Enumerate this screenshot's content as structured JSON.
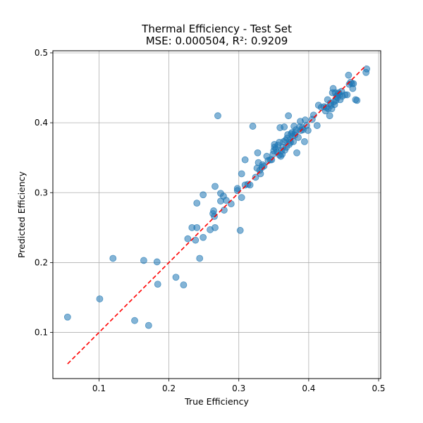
{
  "chart_data": {
    "type": "scatter",
    "title": "Thermal Efficiency - Test Set",
    "subtitle": "MSE: 0.000504, R²: 0.9209",
    "xlabel": "True Efficiency",
    "ylabel": "Predicted Efficiency",
    "xlim": [
      0.034,
      0.503
    ],
    "ylim": [
      0.034,
      0.503
    ],
    "xticks": [
      0.1,
      0.2,
      0.3,
      0.4,
      0.5
    ],
    "yticks": [
      0.1,
      0.2,
      0.3,
      0.4,
      0.5
    ],
    "xtick_labels": [
      "0.1",
      "0.2",
      "0.3",
      "0.4",
      "0.5"
    ],
    "ytick_labels": [
      "0.1",
      "0.2",
      "0.3",
      "0.4",
      "0.5"
    ],
    "grid": true,
    "point_color": "#1f77b4",
    "reference_line": {
      "color": "#ff0000",
      "style": "dashed",
      "x": [
        0.055,
        0.482
      ],
      "y": [
        0.055,
        0.482
      ]
    },
    "points": [
      [
        0.055,
        0.122
      ],
      [
        0.101,
        0.148
      ],
      [
        0.12,
        0.206
      ],
      [
        0.151,
        0.117
      ],
      [
        0.164,
        0.203
      ],
      [
        0.171,
        0.11
      ],
      [
        0.183,
        0.201
      ],
      [
        0.184,
        0.169
      ],
      [
        0.21,
        0.179
      ],
      [
        0.221,
        0.168
      ],
      [
        0.227,
        0.234
      ],
      [
        0.233,
        0.25
      ],
      [
        0.238,
        0.232
      ],
      [
        0.24,
        0.285
      ],
      [
        0.24,
        0.25
      ],
      [
        0.244,
        0.206
      ],
      [
        0.249,
        0.236
      ],
      [
        0.249,
        0.297
      ],
      [
        0.259,
        0.247
      ],
      [
        0.263,
        0.27
      ],
      [
        0.264,
        0.274
      ],
      [
        0.265,
        0.266
      ],
      [
        0.266,
        0.309
      ],
      [
        0.266,
        0.25
      ],
      [
        0.27,
        0.41
      ],
      [
        0.274,
        0.299
      ],
      [
        0.274,
        0.288
      ],
      [
        0.278,
        0.295
      ],
      [
        0.279,
        0.275
      ],
      [
        0.282,
        0.289
      ],
      [
        0.289,
        0.284
      ],
      [
        0.298,
        0.306
      ],
      [
        0.298,
        0.303
      ],
      [
        0.302,
        0.246
      ],
      [
        0.304,
        0.327
      ],
      [
        0.304,
        0.293
      ],
      [
        0.309,
        0.311
      ],
      [
        0.309,
        0.347
      ],
      [
        0.313,
        0.312
      ],
      [
        0.316,
        0.311
      ],
      [
        0.32,
        0.395
      ],
      [
        0.324,
        0.322
      ],
      [
        0.326,
        0.335
      ],
      [
        0.327,
        0.357
      ],
      [
        0.328,
        0.343
      ],
      [
        0.33,
        0.332
      ],
      [
        0.331,
        0.327
      ],
      [
        0.333,
        0.336
      ],
      [
        0.334,
        0.34
      ],
      [
        0.336,
        0.338
      ],
      [
        0.34,
        0.352
      ],
      [
        0.342,
        0.346
      ],
      [
        0.345,
        0.347
      ],
      [
        0.347,
        0.347
      ],
      [
        0.349,
        0.355
      ],
      [
        0.35,
        0.36
      ],
      [
        0.351,
        0.365
      ],
      [
        0.351,
        0.369
      ],
      [
        0.353,
        0.363
      ],
      [
        0.355,
        0.358
      ],
      [
        0.356,
        0.368
      ],
      [
        0.358,
        0.372
      ],
      [
        0.358,
        0.354
      ],
      [
        0.359,
        0.393
      ],
      [
        0.36,
        0.352
      ],
      [
        0.361,
        0.36
      ],
      [
        0.362,
        0.355
      ],
      [
        0.363,
        0.365
      ],
      [
        0.364,
        0.373
      ],
      [
        0.365,
        0.394
      ],
      [
        0.366,
        0.361
      ],
      [
        0.367,
        0.375
      ],
      [
        0.368,
        0.365
      ],
      [
        0.369,
        0.378
      ],
      [
        0.37,
        0.383
      ],
      [
        0.371,
        0.41
      ],
      [
        0.372,
        0.369
      ],
      [
        0.373,
        0.375
      ],
      [
        0.374,
        0.372
      ],
      [
        0.375,
        0.384
      ],
      [
        0.376,
        0.386
      ],
      [
        0.377,
        0.381
      ],
      [
        0.378,
        0.373
      ],
      [
        0.379,
        0.395
      ],
      [
        0.38,
        0.382
      ],
      [
        0.381,
        0.386
      ],
      [
        0.382,
        0.39
      ],
      [
        0.383,
        0.357
      ],
      [
        0.385,
        0.379
      ],
      [
        0.387,
        0.394
      ],
      [
        0.388,
        0.402
      ],
      [
        0.389,
        0.389
      ],
      [
        0.391,
        0.393
      ],
      [
        0.392,
        0.39
      ],
      [
        0.394,
        0.373
      ],
      [
        0.395,
        0.404
      ],
      [
        0.397,
        0.396
      ],
      [
        0.399,
        0.389
      ],
      [
        0.405,
        0.405
      ],
      [
        0.407,
        0.411
      ],
      [
        0.412,
        0.396
      ],
      [
        0.414,
        0.425
      ],
      [
        0.418,
        0.422
      ],
      [
        0.422,
        0.423
      ],
      [
        0.424,
        0.417
      ],
      [
        0.425,
        0.422
      ],
      [
        0.427,
        0.433
      ],
      [
        0.428,
        0.42
      ],
      [
        0.43,
        0.41
      ],
      [
        0.431,
        0.428
      ],
      [
        0.432,
        0.425
      ],
      [
        0.433,
        0.42
      ],
      [
        0.434,
        0.443
      ],
      [
        0.435,
        0.449
      ],
      [
        0.436,
        0.43
      ],
      [
        0.437,
        0.426
      ],
      [
        0.438,
        0.443
      ],
      [
        0.439,
        0.432
      ],
      [
        0.44,
        0.438
      ],
      [
        0.441,
        0.436
      ],
      [
        0.442,
        0.441
      ],
      [
        0.443,
        0.443
      ],
      [
        0.444,
        0.44
      ],
      [
        0.445,
        0.433
      ],
      [
        0.447,
        0.445
      ],
      [
        0.448,
        0.438
      ],
      [
        0.452,
        0.44
      ],
      [
        0.455,
        0.44
      ],
      [
        0.457,
        0.468
      ],
      [
        0.458,
        0.455
      ],
      [
        0.46,
        0.458
      ],
      [
        0.462,
        0.456
      ],
      [
        0.463,
        0.449
      ],
      [
        0.464,
        0.456
      ],
      [
        0.467,
        0.433
      ],
      [
        0.469,
        0.432
      ],
      [
        0.482,
        0.472
      ],
      [
        0.483,
        0.477
      ]
    ]
  }
}
